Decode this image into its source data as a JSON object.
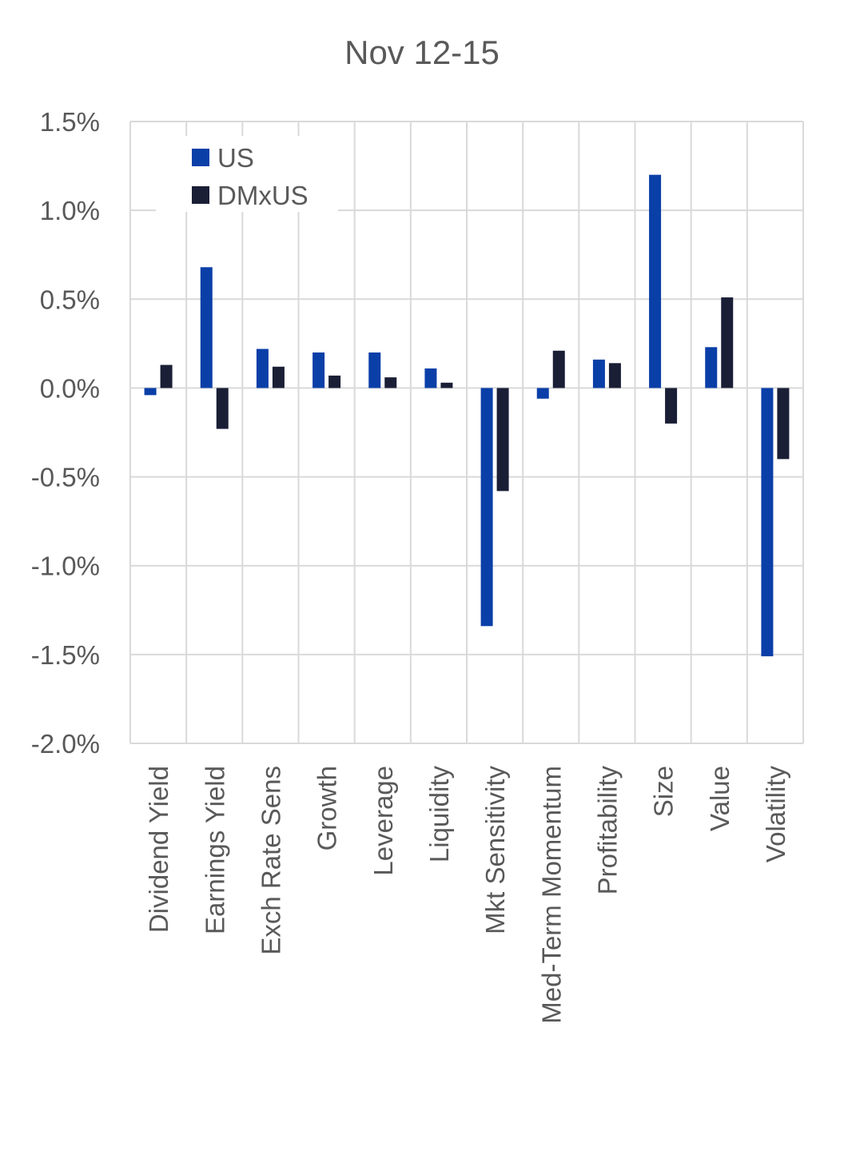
{
  "chart_data": {
    "type": "bar",
    "title": "Nov 12-15",
    "xlabel": "",
    "ylabel": "",
    "ylim": [
      -2.0,
      1.5
    ],
    "y_ticks": [
      1.5,
      1.0,
      0.5,
      0.0,
      -0.5,
      -1.0,
      -1.5,
      -2.0
    ],
    "y_tick_labels": [
      "1.5%",
      "1.0%",
      "0.5%",
      "0.0%",
      "-0.5%",
      "-1.0%",
      "-1.5%",
      "-2.0%"
    ],
    "y_unit": "%",
    "grid": "both",
    "legend_position": "top-left",
    "categories": [
      "Dividend Yield",
      "Earnings Yield",
      "Exch Rate Sens",
      "Growth",
      "Leverage",
      "Liquidity",
      "Mkt Sensitivity",
      "Med-Term Momentum",
      "Profitability",
      "Size",
      "Value",
      "Volatility"
    ],
    "series": [
      {
        "name": "US",
        "color": "#0a3fa8",
        "values": [
          -0.04,
          0.68,
          0.22,
          0.2,
          0.2,
          0.11,
          -1.34,
          -0.06,
          0.16,
          1.2,
          0.23,
          -1.51
        ]
      },
      {
        "name": "DMxUS",
        "color": "#1a1f36",
        "values": [
          0.13,
          -0.23,
          0.12,
          0.07,
          0.06,
          0.03,
          -0.58,
          0.21,
          0.14,
          -0.2,
          0.51,
          -0.4
        ]
      }
    ]
  }
}
